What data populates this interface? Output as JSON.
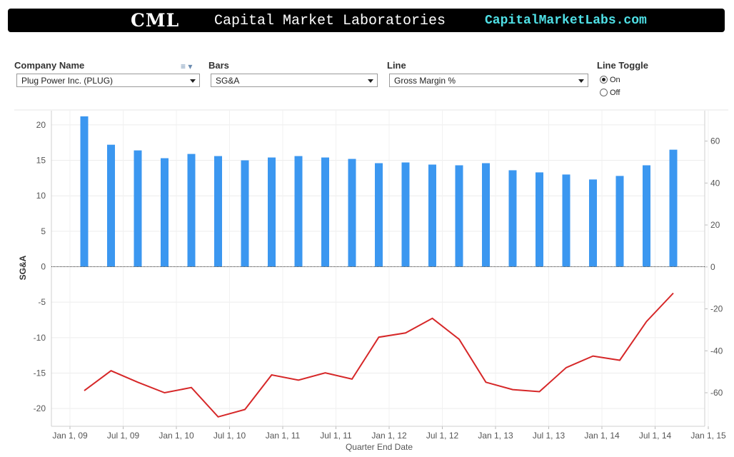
{
  "banner": {
    "logo": "CML",
    "title": "Capital Market Laboratories",
    "site": "CapitalMarketLabs.com"
  },
  "controls": {
    "company_label": "Company Name",
    "company_value": "Plug Power Inc. (PLUG)",
    "bars_label": "Bars",
    "bars_value": "SG&A",
    "line_label": "Line",
    "line_value": "Gross Margin %",
    "toggle_label": "Line Toggle",
    "toggle_on": "On",
    "toggle_off": "Off",
    "toggle_selected": "On"
  },
  "chart_data": {
    "type": "bar+line",
    "xlabel": "Quarter End Date",
    "ylabel": "SG&A",
    "x_ticks": [
      "Jan 1, 09",
      "Jul 1, 09",
      "Jan 1, 10",
      "Jul 1, 10",
      "Jan 1, 11",
      "Jul 1, 11",
      "Jan 1, 12",
      "Jul 1, 12",
      "Jan 1, 13",
      "Jul 1, 13",
      "Jan 1, 14",
      "Jul 1, 14",
      "Jan 1, 15"
    ],
    "y_left_ticks": [
      20,
      15,
      10,
      5,
      0,
      -5,
      -10,
      -15,
      -20
    ],
    "y_left_range": [
      -22.5,
      22
    ],
    "y_right_ticks": [
      60,
      40,
      20,
      0,
      -20,
      -40,
      -60
    ],
    "y_right_range": [
      -76,
      74.5
    ],
    "bar_color": "#3b97f0",
    "line_color": "#d62728",
    "series": [
      {
        "name": "SG&A",
        "values": [
          21.2,
          17.2,
          16.4,
          15.3,
          15.9,
          15.6,
          15.0,
          15.4,
          15.6,
          15.4,
          15.2,
          14.6,
          14.7,
          14.4,
          14.3,
          14.6,
          13.6,
          13.3,
          13.0,
          12.3,
          12.8,
          14.3,
          16.5
        ]
      },
      {
        "name": "Gross Margin %",
        "values": [
          -59.0,
          -49.5,
          -55.0,
          -60.0,
          -57.5,
          -71.5,
          -68.0,
          -51.5,
          -54.0,
          -50.5,
          -53.5,
          -33.5,
          -31.5,
          -24.5,
          -34.5,
          -55.0,
          -58.5,
          -59.5,
          -48.0,
          -42.5,
          -44.5,
          -26.0,
          -12.5
        ]
      }
    ]
  }
}
